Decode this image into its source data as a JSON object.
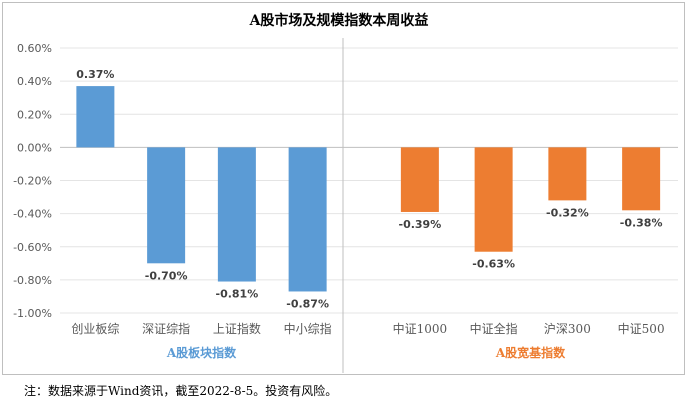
{
  "chart_data": {
    "type": "bar",
    "title": "A股市场及规模指数本周收益",
    "y_ticks": [
      "0.60%",
      "0.40%",
      "0.20%",
      "0.00%",
      "-0.20%",
      "-0.40%",
      "-0.60%",
      "-0.80%",
      "-1.00%"
    ],
    "ylim": [
      -1.0,
      0.6
    ],
    "grid": "horizontal",
    "groups": [
      {
        "name": "A股板块指数",
        "color": "#5B9BD5",
        "categories": [
          "创业板综",
          "深证综指",
          "上证指数",
          "中小综指"
        ],
        "values": [
          0.37,
          -0.7,
          -0.81,
          -0.87
        ],
        "labels": [
          "0.37%",
          "-0.70%",
          "-0.81%",
          "-0.87%"
        ]
      },
      {
        "name": "A股宽基指数",
        "color": "#ED7D31",
        "categories": [
          "中证1000",
          "中证全指",
          "沪深300",
          "中证500"
        ],
        "values": [
          -0.39,
          -0.63,
          -0.32,
          -0.38
        ],
        "labels": [
          "-0.39%",
          "-0.63%",
          "-0.32%",
          "-0.38%"
        ]
      }
    ]
  },
  "footnote": "注：数据来源于Wind资讯，截至2022-8-5。投资有风险。"
}
